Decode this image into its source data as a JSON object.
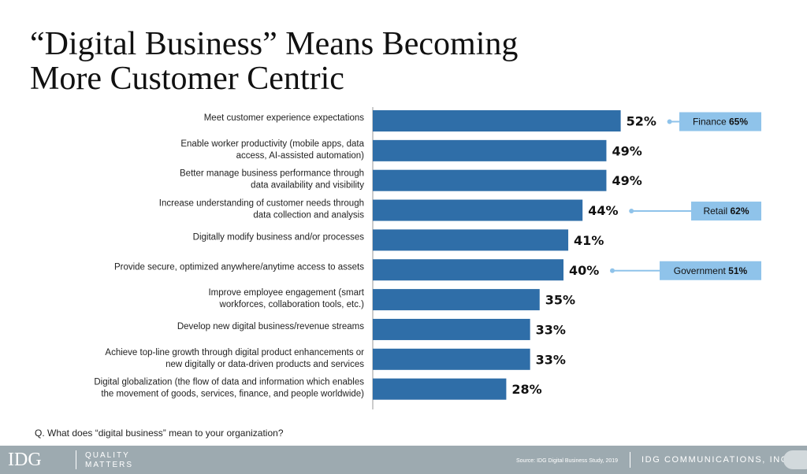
{
  "title_line1": "“Digital Business” Means Becoming",
  "title_line2": "More Customer Centric",
  "chart_data": {
    "type": "bar",
    "orientation": "horizontal",
    "bar_color": "#2f6ea8",
    "categories": [
      [
        "Meet customer experience expectations"
      ],
      [
        "Enable worker productivity (mobile apps, data",
        "access, AI-assisted automation)"
      ],
      [
        "Better manage business performance through",
        "data availability and visibility"
      ],
      [
        "Increase understanding of customer needs through",
        "data collection and analysis"
      ],
      [
        "Digitally modify business and/or processes"
      ],
      [
        "Provide secure, optimized anywhere/anytime access to assets"
      ],
      [
        "Improve employee engagement (smart",
        "workforces, collaboration tools, etc.)"
      ],
      [
        "Develop new digital business/revenue streams"
      ],
      [
        "Achieve top-line growth through digital product enhancements or",
        "new digitally or data-driven products and services"
      ],
      [
        "Digital globalization (the flow of data and information which enables",
        "the movement of goods, services, finance, and people worldwide)"
      ]
    ],
    "values": [
      52,
      49,
      49,
      44,
      41,
      40,
      35,
      33,
      33,
      28
    ],
    "value_labels": [
      "52%",
      "49%",
      "49%",
      "44%",
      "41%",
      "40%",
      "35%",
      "33%",
      "33%",
      "28%"
    ],
    "callouts": [
      {
        "bar_index": 0,
        "label": "Finance",
        "value": "65%",
        "fill": "#8fc3ea",
        "line_color": "#8fc3ea"
      },
      {
        "bar_index": 3,
        "label": "Retail",
        "value": "62%",
        "fill": "#8fc3ea",
        "line_color": "#8fc3ea"
      },
      {
        "bar_index": 5,
        "label": "Government",
        "value": "51%",
        "fill": "#8fc3ea",
        "line_color": "#8fc3ea"
      }
    ]
  },
  "question": "Q. What does “digital business” mean to your organization?",
  "footer": {
    "logo": "IDG",
    "tagline_line1": "QUALITY",
    "tagline_line2": "MATTERS",
    "source": "Source: IDG Digital Business Study, 2019",
    "company": "IDG COMMUNICATIONS, INC."
  }
}
